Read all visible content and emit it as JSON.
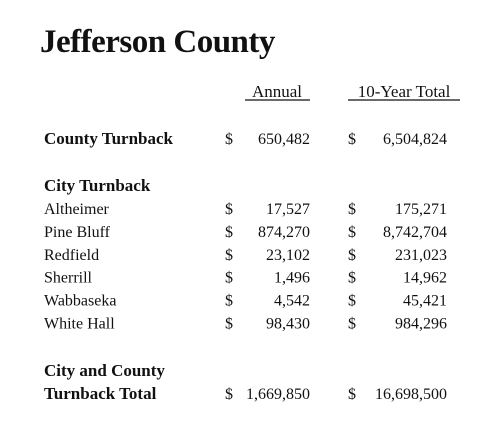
{
  "title": "Jefferson County",
  "currency": "$",
  "columns": [
    "Annual",
    "10-Year Total"
  ],
  "county": {
    "label": "County Turnback",
    "annual": "650,482",
    "total": "6,504,824"
  },
  "city": {
    "heading": "City Turnback",
    "rows": [
      {
        "label": "Altheimer",
        "annual": "17,527",
        "total": "175,271"
      },
      {
        "label": "Pine Bluff",
        "annual": "874,270",
        "total": "8,742,704"
      },
      {
        "label": "Redfield",
        "annual": "23,102",
        "total": "231,023"
      },
      {
        "label": "Sherrill",
        "annual": "1,496",
        "total": "14,962"
      },
      {
        "label": "Wabbaseka",
        "annual": "4,542",
        "total": "45,421"
      },
      {
        "label": "White Hall",
        "annual": "98,430",
        "total": "984,296"
      }
    ]
  },
  "grand_total": {
    "label_lines": [
      "City and County",
      "Turnback Total"
    ],
    "annual": "1,669,850",
    "total": "16,698,500"
  }
}
